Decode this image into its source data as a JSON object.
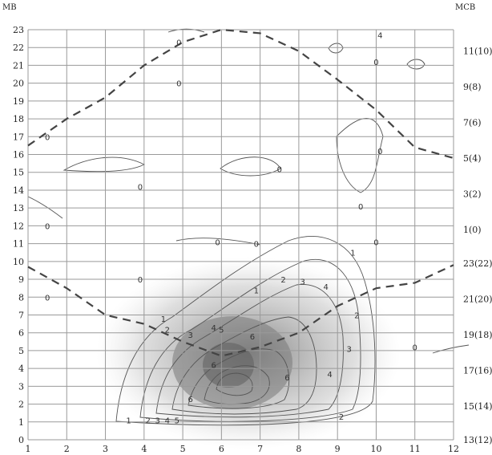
{
  "chart_data": {
    "type": "contour",
    "title": "",
    "axis_corner_labels": {
      "left": "МВ",
      "right": "МСВ"
    },
    "x_ticks": [
      "1",
      "2",
      "3",
      "4",
      "5",
      "6",
      "7",
      "8",
      "9",
      "10",
      "11",
      "12"
    ],
    "y_ticks": [
      "0",
      "1",
      "2",
      "3",
      "4",
      "5",
      "6",
      "7",
      "8",
      "9",
      "10",
      "11",
      "12",
      "13",
      "14",
      "15",
      "16",
      "17",
      "18",
      "19",
      "20",
      "21",
      "22",
      "23"
    ],
    "right_ticks": [
      {
        "y": 0,
        "label": "13(12)"
      },
      {
        "y": 1.9,
        "label": "15(14)"
      },
      {
        "y": 3.9,
        "label": "17(16)"
      },
      {
        "y": 5.9,
        "label": "19(18)"
      },
      {
        "y": 7.9,
        "label": "21(20)"
      },
      {
        "y": 9.9,
        "label": "23(22)"
      },
      {
        "y": 11.8,
        "label": "1(0)"
      },
      {
        "y": 13.8,
        "label": "3(2)"
      },
      {
        "y": 15.8,
        "label": "5(4)"
      },
      {
        "y": 17.8,
        "label": "7(6)"
      },
      {
        "y": 19.8,
        "label": "9(8)"
      },
      {
        "y": 21.8,
        "label": "11(10)"
      }
    ],
    "xlim": [
      1,
      12
    ],
    "ylim": [
      0,
      23
    ],
    "grid": true,
    "dashed_boundaries": [
      {
        "points": [
          [
            1,
            16.5
          ],
          [
            2,
            18
          ],
          [
            3,
            19.2
          ],
          [
            4,
            21
          ],
          [
            5,
            22.3
          ],
          [
            6,
            23
          ],
          [
            7,
            22.8
          ],
          [
            8,
            21.8
          ],
          [
            9,
            20.2
          ],
          [
            10,
            18.5
          ],
          [
            11,
            16.4
          ],
          [
            12,
            15.8
          ]
        ]
      },
      {
        "points": [
          [
            1,
            9.7
          ],
          [
            2,
            8.5
          ],
          [
            3,
            7
          ],
          [
            4,
            6.5
          ],
          [
            5,
            5.5
          ],
          [
            6,
            4.7
          ],
          [
            7,
            5.2
          ],
          [
            8,
            6
          ],
          [
            9,
            7.5
          ],
          [
            10,
            8.5
          ],
          [
            11,
            8.8
          ],
          [
            12,
            9.8
          ]
        ]
      }
    ],
    "contour_labels": [
      {
        "x": 1.5,
        "y": 17,
        "text": "0"
      },
      {
        "x": 4.9,
        "y": 22.3,
        "text": "0"
      },
      {
        "x": 4.9,
        "y": 20,
        "text": "0"
      },
      {
        "x": 3.9,
        "y": 14.2,
        "text": "0"
      },
      {
        "x": 7.5,
        "y": 15.2,
        "text": "0"
      },
      {
        "x": 10,
        "y": 21.2,
        "text": "0"
      },
      {
        "x": 10.1,
        "y": 16.2,
        "text": "0"
      },
      {
        "x": 9.6,
        "y": 13.1,
        "text": "0"
      },
      {
        "x": 1.5,
        "y": 12,
        "text": "0"
      },
      {
        "x": 5.9,
        "y": 11.1,
        "text": "0"
      },
      {
        "x": 6.9,
        "y": 11,
        "text": "0"
      },
      {
        "x": 10,
        "y": 11.1,
        "text": "0"
      },
      {
        "x": 1.5,
        "y": 8,
        "text": "0"
      },
      {
        "x": 3.9,
        "y": 9,
        "text": "0"
      },
      {
        "x": 11,
        "y": 5.2,
        "text": "0"
      },
      {
        "x": 10.1,
        "y": 22.7,
        "text": "4"
      },
      {
        "x": 9.4,
        "y": 10.5,
        "text": "1"
      },
      {
        "x": 6.9,
        "y": 8.4,
        "text": "1"
      },
      {
        "x": 7.6,
        "y": 9,
        "text": "2"
      },
      {
        "x": 8.1,
        "y": 8.9,
        "text": "3"
      },
      {
        "x": 8.7,
        "y": 8.6,
        "text": "4"
      },
      {
        "x": 9.5,
        "y": 7,
        "text": "2"
      },
      {
        "x": 9.3,
        "y": 5.1,
        "text": "3"
      },
      {
        "x": 8.8,
        "y": 3.7,
        "text": "4"
      },
      {
        "x": 9.1,
        "y": 1.3,
        "text": "2"
      },
      {
        "x": 3.6,
        "y": 1.1,
        "text": "1"
      },
      {
        "x": 4.1,
        "y": 1.1,
        "text": "2"
      },
      {
        "x": 4.35,
        "y": 1.1,
        "text": "3"
      },
      {
        "x": 4.6,
        "y": 1.1,
        "text": "4"
      },
      {
        "x": 4.85,
        "y": 1.1,
        "text": "5"
      },
      {
        "x": 4.6,
        "y": 6.2,
        "text": "2"
      },
      {
        "x": 5.2,
        "y": 5.9,
        "text": "3"
      },
      {
        "x": 5.8,
        "y": 6.3,
        "text": "4"
      },
      {
        "x": 6,
        "y": 6.2,
        "text": "5"
      },
      {
        "x": 6.8,
        "y": 5.8,
        "text": "6"
      },
      {
        "x": 5.8,
        "y": 4.2,
        "text": "6"
      },
      {
        "x": 5.2,
        "y": 2.3,
        "text": "6"
      },
      {
        "x": 7.7,
        "y": 3.5,
        "text": "6"
      },
      {
        "x": 4.5,
        "y": 6.8,
        "text": "1"
      }
    ]
  }
}
